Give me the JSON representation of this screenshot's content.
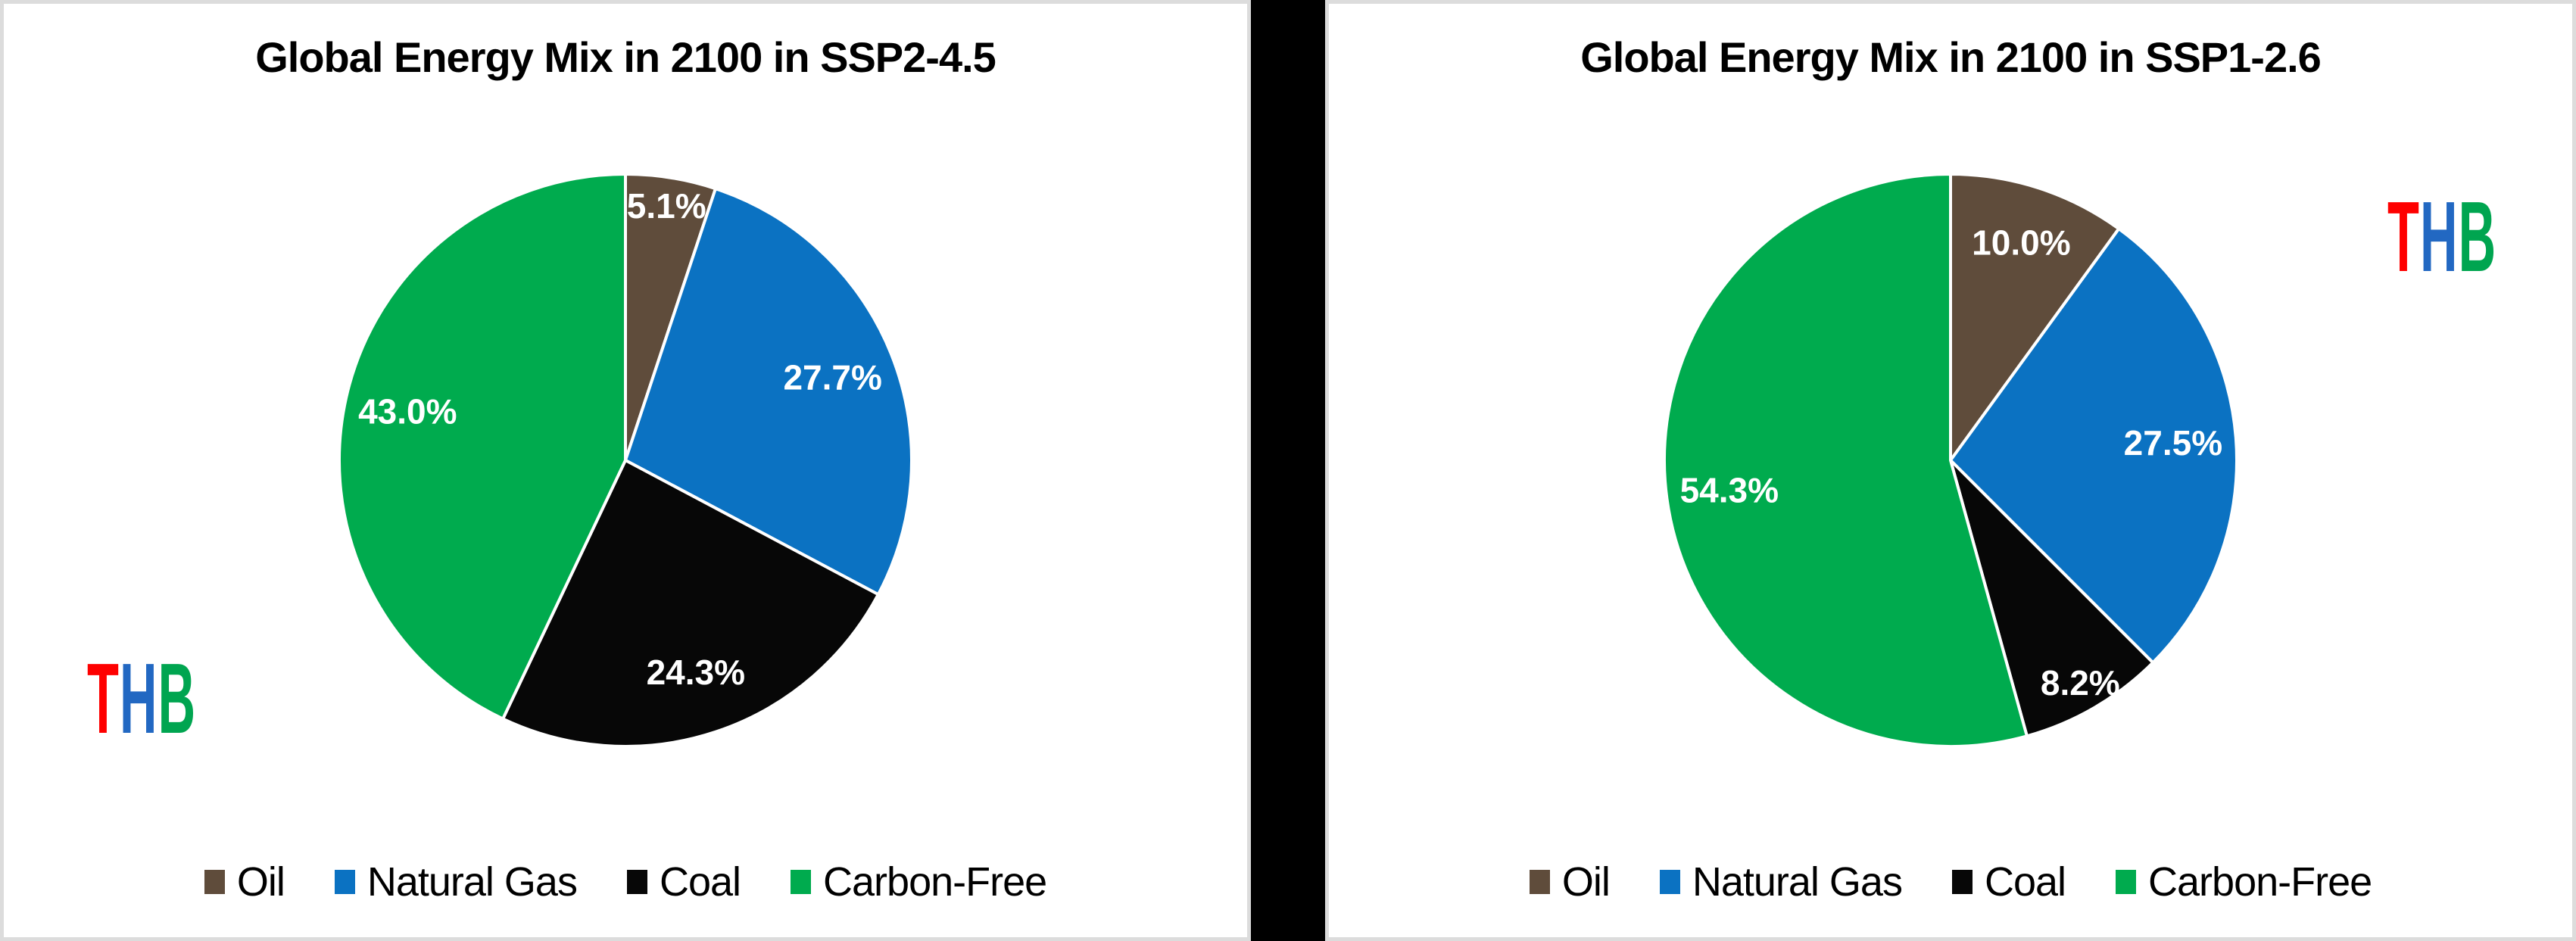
{
  "page": {
    "background_color": "#000000",
    "panel_background": "#ffffff",
    "panel_border_color": "#dcdcdc",
    "divider_color": "#000000"
  },
  "chart_data": [
    {
      "type": "pie",
      "title": "Global Energy Mix in 2100 in SSP2-4.5",
      "categories": [
        "Oil",
        "Natural Gas",
        "Coal",
        "Carbon-Free"
      ],
      "values": [
        5.1,
        27.7,
        24.3,
        43.0
      ],
      "data_labels": [
        "5.1%",
        "27.7%",
        "24.3%",
        "43.0%"
      ],
      "slice_colors": [
        "#5F4C3B",
        "#0B72C2",
        "#070707",
        "#00AB4E"
      ],
      "label_color": "#FFFFFF",
      "start_angle_deg": 0,
      "direction": "clockwise",
      "legend_position": "bottom",
      "watermark": {
        "text": "THB",
        "letter_colors": [
          "#FE0000",
          "#2268C2",
          "#00A550"
        ],
        "position": "bottom-left"
      }
    },
    {
      "type": "pie",
      "title": "Global Energy Mix in 2100 in SSP1-2.6",
      "categories": [
        "Oil",
        "Natural Gas",
        "Coal",
        "Carbon-Free"
      ],
      "values": [
        10.0,
        27.5,
        8.2,
        54.3
      ],
      "data_labels": [
        "10.0%",
        "27.5%",
        "8.2%",
        "54.3%"
      ],
      "slice_colors": [
        "#5F4C3B",
        "#0B72C2",
        "#070707",
        "#00AB4E"
      ],
      "label_color": "#FFFFFF",
      "start_angle_deg": 0,
      "direction": "clockwise",
      "legend_position": "bottom",
      "watermark": {
        "text": "THB",
        "letter_colors": [
          "#FE0000",
          "#2268C2",
          "#00A550"
        ],
        "position": "top-right"
      }
    }
  ]
}
